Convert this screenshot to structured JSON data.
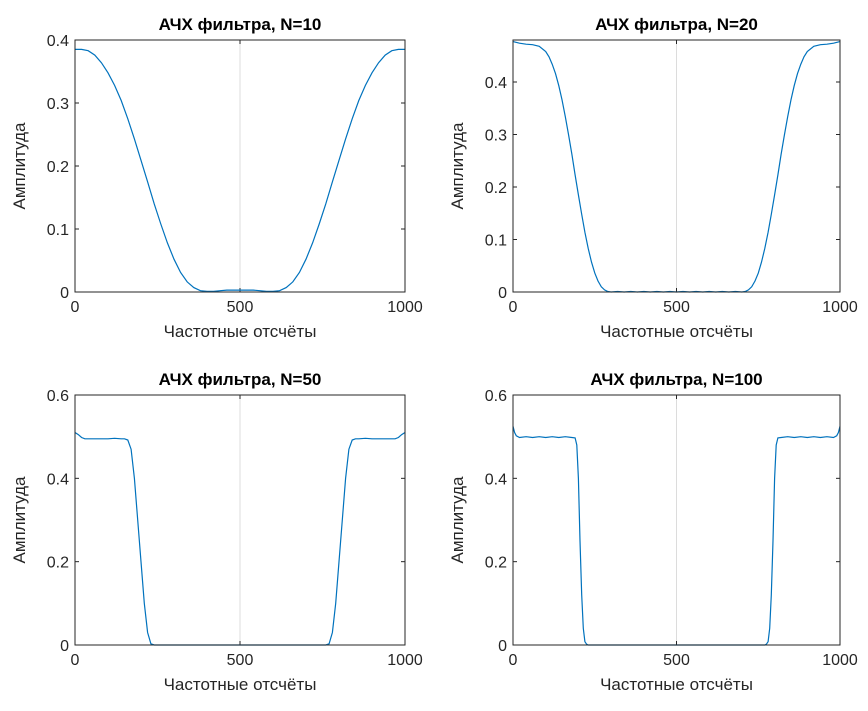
{
  "figure": {
    "line_color": "#0072BD",
    "grid": "x-only"
  },
  "chart_data": [
    {
      "type": "line",
      "title": "АЧХ фильтра, N=10",
      "xlabel": "Частотные отсчёты",
      "ylabel": "Амплитуда",
      "xlim": [
        0,
        1000
      ],
      "ylim": [
        0,
        0.4
      ],
      "xticks": [
        0,
        500,
        1000
      ],
      "xtick_labels": [
        "0",
        "500",
        "1000"
      ],
      "yticks": [
        0,
        0.1,
        0.2,
        0.3,
        0.4
      ],
      "ytick_labels": [
        "0",
        "0.1",
        "0.2",
        "0.3",
        "0.4"
      ],
      "series": [
        {
          "x": [
            0,
            20,
            40,
            60,
            80,
            100,
            120,
            140,
            160,
            180,
            200,
            220,
            240,
            260,
            280,
            300,
            320,
            340,
            360,
            380,
            400,
            420,
            440,
            460,
            480,
            500,
            520,
            540,
            560,
            580,
            600,
            620,
            640,
            660,
            680,
            700,
            720,
            740,
            760,
            780,
            800,
            820,
            840,
            860,
            880,
            900,
            920,
            940,
            960,
            980,
            1000
          ],
          "y": [
            0.385,
            0.385,
            0.383,
            0.376,
            0.364,
            0.348,
            0.328,
            0.304,
            0.275,
            0.243,
            0.209,
            0.175,
            0.14,
            0.108,
            0.078,
            0.052,
            0.031,
            0.016,
            0.007,
            0.002,
            0.001,
            0.001,
            0.002,
            0.003,
            0.003,
            0.003,
            0.003,
            0.003,
            0.002,
            0.001,
            0.001,
            0.002,
            0.007,
            0.016,
            0.031,
            0.052,
            0.078,
            0.108,
            0.14,
            0.175,
            0.209,
            0.243,
            0.275,
            0.304,
            0.328,
            0.348,
            0.364,
            0.376,
            0.383,
            0.385,
            0.385
          ]
        }
      ]
    },
    {
      "type": "line",
      "title": "АЧХ фильтра, N=20",
      "xlabel": "Частотные отсчёты",
      "ylabel": "Амплитуда",
      "xlim": [
        0,
        1000
      ],
      "ylim": [
        0,
        0.48
      ],
      "xticks": [
        0,
        500,
        1000
      ],
      "xtick_labels": [
        "0",
        "500",
        "1000"
      ],
      "yticks": [
        0,
        0.1,
        0.2,
        0.3,
        0.4
      ],
      "ytick_labels": [
        "0",
        "0.1",
        "0.2",
        "0.3",
        "0.4"
      ],
      "series": [
        {
          "x": [
            0,
            20,
            40,
            60,
            80,
            100,
            110,
            120,
            130,
            140,
            150,
            160,
            170,
            180,
            190,
            200,
            210,
            220,
            230,
            240,
            250,
            260,
            270,
            280,
            290,
            300,
            320,
            340,
            360,
            380,
            400,
            420,
            440,
            460,
            480,
            500,
            520,
            540,
            560,
            580,
            600,
            620,
            640,
            660,
            680,
            700,
            710,
            720,
            730,
            740,
            750,
            760,
            770,
            780,
            790,
            800,
            810,
            820,
            830,
            840,
            850,
            860,
            870,
            880,
            890,
            900,
            920,
            940,
            960,
            980,
            1000
          ],
          "y": [
            0.477,
            0.474,
            0.472,
            0.471,
            0.468,
            0.458,
            0.448,
            0.434,
            0.416,
            0.393,
            0.366,
            0.334,
            0.299,
            0.262,
            0.223,
            0.185,
            0.148,
            0.114,
            0.083,
            0.057,
            0.036,
            0.021,
            0.01,
            0.004,
            0.001,
            0.0,
            0.001,
            0.0,
            0.001,
            0.0,
            0.001,
            0.0,
            0.001,
            0.0,
            0.001,
            0.0,
            0.001,
            0.0,
            0.001,
            0.0,
            0.001,
            0.0,
            0.001,
            0.0,
            0.001,
            0.0,
            0.001,
            0.004,
            0.01,
            0.021,
            0.036,
            0.057,
            0.083,
            0.114,
            0.148,
            0.185,
            0.223,
            0.262,
            0.299,
            0.334,
            0.366,
            0.393,
            0.416,
            0.434,
            0.448,
            0.458,
            0.468,
            0.471,
            0.472,
            0.474,
            0.477
          ]
        }
      ]
    },
    {
      "type": "line",
      "title": "АЧХ фильтра, N=50",
      "xlabel": "Частотные отсчёты",
      "ylabel": "Амплитуда",
      "xlim": [
        0,
        1000
      ],
      "ylim": [
        0,
        0.6
      ],
      "xticks": [
        0,
        500,
        1000
      ],
      "xtick_labels": [
        "0",
        "500",
        "1000"
      ],
      "yticks": [
        0,
        0.2,
        0.4,
        0.6
      ],
      "ytick_labels": [
        "0",
        "0.2",
        "0.4",
        "0.6"
      ],
      "series": [
        {
          "x": [
            0,
            10,
            20,
            30,
            40,
            60,
            80,
            100,
            120,
            140,
            150,
            160,
            170,
            180,
            190,
            200,
            210,
            220,
            230,
            240,
            260,
            300,
            400,
            500,
            600,
            700,
            740,
            760,
            770,
            780,
            790,
            800,
            810,
            820,
            830,
            840,
            850,
            860,
            880,
            900,
            920,
            940,
            960,
            970,
            980,
            990,
            1000
          ],
          "y": [
            0.51,
            0.505,
            0.498,
            0.495,
            0.495,
            0.495,
            0.495,
            0.495,
            0.496,
            0.495,
            0.495,
            0.492,
            0.47,
            0.4,
            0.3,
            0.2,
            0.1,
            0.03,
            0.003,
            0.0,
            0.0,
            0.0,
            0.0,
            0.0,
            0.0,
            0.0,
            0.0,
            0.0,
            0.003,
            0.03,
            0.1,
            0.2,
            0.3,
            0.4,
            0.47,
            0.492,
            0.495,
            0.495,
            0.496,
            0.495,
            0.495,
            0.495,
            0.495,
            0.495,
            0.498,
            0.505,
            0.51
          ]
        }
      ]
    },
    {
      "type": "line",
      "title": "АЧХ фильтра, N=100",
      "xlabel": "Частотные отсчёты",
      "ylabel": "Амплитуда",
      "xlim": [
        0,
        1000
      ],
      "ylim": [
        0,
        0.6
      ],
      "xticks": [
        0,
        500,
        1000
      ],
      "xtick_labels": [
        "0",
        "500",
        "1000"
      ],
      "yticks": [
        0,
        0.2,
        0.4,
        0.6
      ],
      "ytick_labels": [
        "0",
        "0.2",
        "0.4",
        "0.6"
      ],
      "series": [
        {
          "x": [
            0,
            5,
            10,
            20,
            40,
            60,
            80,
            100,
            120,
            140,
            160,
            180,
            190,
            195,
            200,
            205,
            210,
            215,
            220,
            225,
            230,
            260,
            300,
            400,
            500,
            600,
            700,
            770,
            775,
            780,
            785,
            790,
            795,
            800,
            805,
            810,
            820,
            840,
            860,
            880,
            900,
            920,
            940,
            960,
            980,
            990,
            995,
            1000
          ],
          "y": [
            0.525,
            0.51,
            0.502,
            0.498,
            0.5,
            0.498,
            0.5,
            0.498,
            0.5,
            0.498,
            0.5,
            0.498,
            0.497,
            0.48,
            0.4,
            0.25,
            0.12,
            0.04,
            0.008,
            0.002,
            0.0,
            0.0,
            0.0,
            0.0,
            0.0,
            0.0,
            0.0,
            0.0,
            0.002,
            0.008,
            0.04,
            0.12,
            0.25,
            0.4,
            0.48,
            0.497,
            0.498,
            0.5,
            0.498,
            0.5,
            0.498,
            0.5,
            0.498,
            0.5,
            0.498,
            0.502,
            0.51,
            0.525
          ]
        }
      ]
    }
  ]
}
